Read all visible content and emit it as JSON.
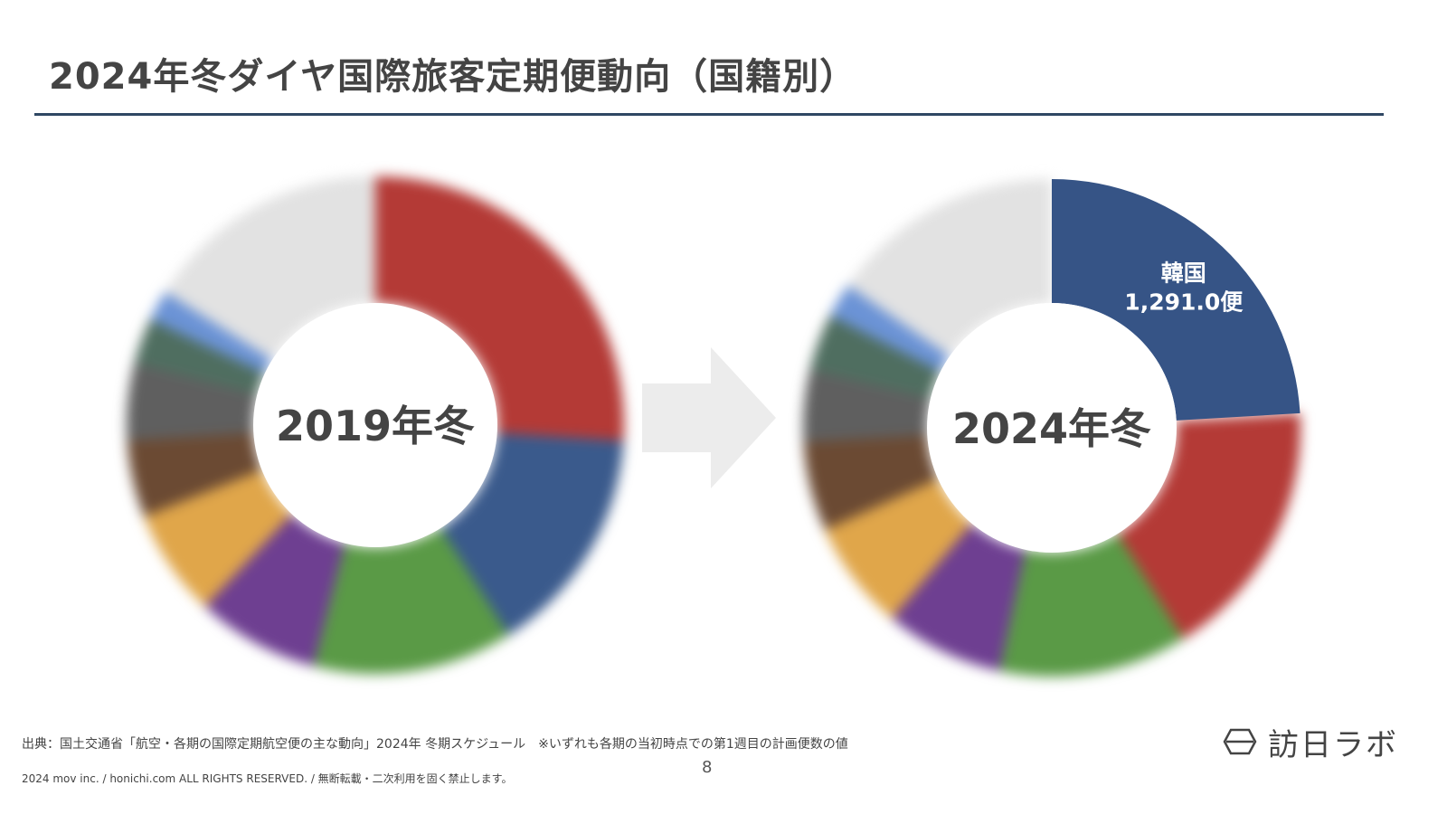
{
  "title": "2024年冬ダイヤ国際旅客定期便動向（国籍別）",
  "arrow_icon": "right-arrow-icon",
  "chart_data": [
    {
      "type": "pie",
      "center_label": "2019年冬",
      "slices": [
        {
          "value": 26.0,
          "color": "#b43a36"
        },
        {
          "value": 15.0,
          "color": "#3a5a8c"
        },
        {
          "value": 13.0,
          "color": "#5a9a46"
        },
        {
          "value": 8.0,
          "color": "#6e3f91"
        },
        {
          "value": 7.0,
          "color": "#e0a64a"
        },
        {
          "value": 5.0,
          "color": "#6b4a33"
        },
        {
          "value": 5.0,
          "color": "#5f5f5f"
        },
        {
          "value": 3.0,
          "color": "#4f6e60"
        },
        {
          "value": 2.0,
          "color": "#6b93d6"
        },
        {
          "value": 16.0,
          "color": "#e2e2e2"
        }
      ]
    },
    {
      "type": "pie",
      "center_label": "2024年冬",
      "slices": [
        {
          "label": "韓国",
          "value": 1291.0,
          "value_label": "1,291.0便",
          "color": "#365486"
        },
        {
          "value": 915.0,
          "color": "#b43a36"
        },
        {
          "value": 657.0,
          "color": "#5a9a46"
        },
        {
          "value": 415.0,
          "color": "#6e3f91"
        },
        {
          "value": 384.0,
          "color": "#e0a64a"
        },
        {
          "value": 312.0,
          "color": "#6b4a33"
        },
        {
          "value": 250.0,
          "color": "#5f5f5f"
        },
        {
          "value": 200.0,
          "color": "#4f6e60"
        },
        {
          "value": 120.0,
          "color": "#6b93d6"
        },
        {
          "value": 820.0,
          "color": "#e2e2e2"
        }
      ]
    }
  ],
  "footer": {
    "source": "出典：国土交通省「航空・各期の国際定期航空便の主な動向」2024年 冬期スケジュール　※いずれも各期の当初時点での第1週目の計画便数の値",
    "page_number": "8",
    "copyright": "2024 mov inc. / honichi.com ALL RIGHTS RESERVED. / 無断転載・二次利用を固く禁止します。",
    "logo_text": "訪日ラボ",
    "logo_icon": "honichi-logo-icon"
  }
}
